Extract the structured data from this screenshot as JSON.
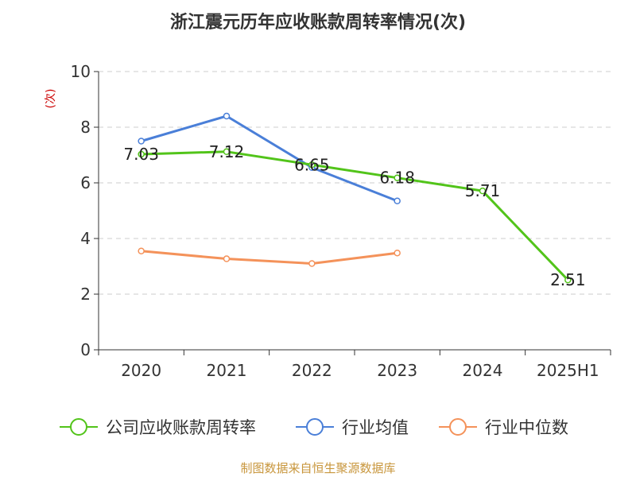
{
  "chart_data": {
    "type": "line",
    "title": "浙江震元历年应收账款周转率情况(次)",
    "ylabel": "(次)",
    "categories": [
      "2020",
      "2021",
      "2022",
      "2023",
      "2024",
      "2025H1"
    ],
    "ylim": [
      0,
      10
    ],
    "yticks": [
      "0",
      "2",
      "4",
      "6",
      "8",
      "10"
    ],
    "grid": true,
    "legend_position": "bottom",
    "series": [
      {
        "name": "公司应收账款周转率",
        "color": "#52c41a",
        "values": [
          7.03,
          7.12,
          6.65,
          6.18,
          5.71,
          2.51
        ],
        "labels": [
          "7.03",
          "7.12",
          "6.65",
          "6.18",
          "5.71",
          "2.51"
        ]
      },
      {
        "name": "行业均值",
        "color": "#4a7fd8",
        "values": [
          7.5,
          8.4,
          6.55,
          5.35,
          null,
          null
        ]
      },
      {
        "name": "行业中位数",
        "color": "#f4925a",
        "values": [
          3.55,
          3.27,
          3.1,
          3.48,
          null,
          null
        ]
      }
    ],
    "source": "制图数据来自恒生聚源数据库"
  }
}
